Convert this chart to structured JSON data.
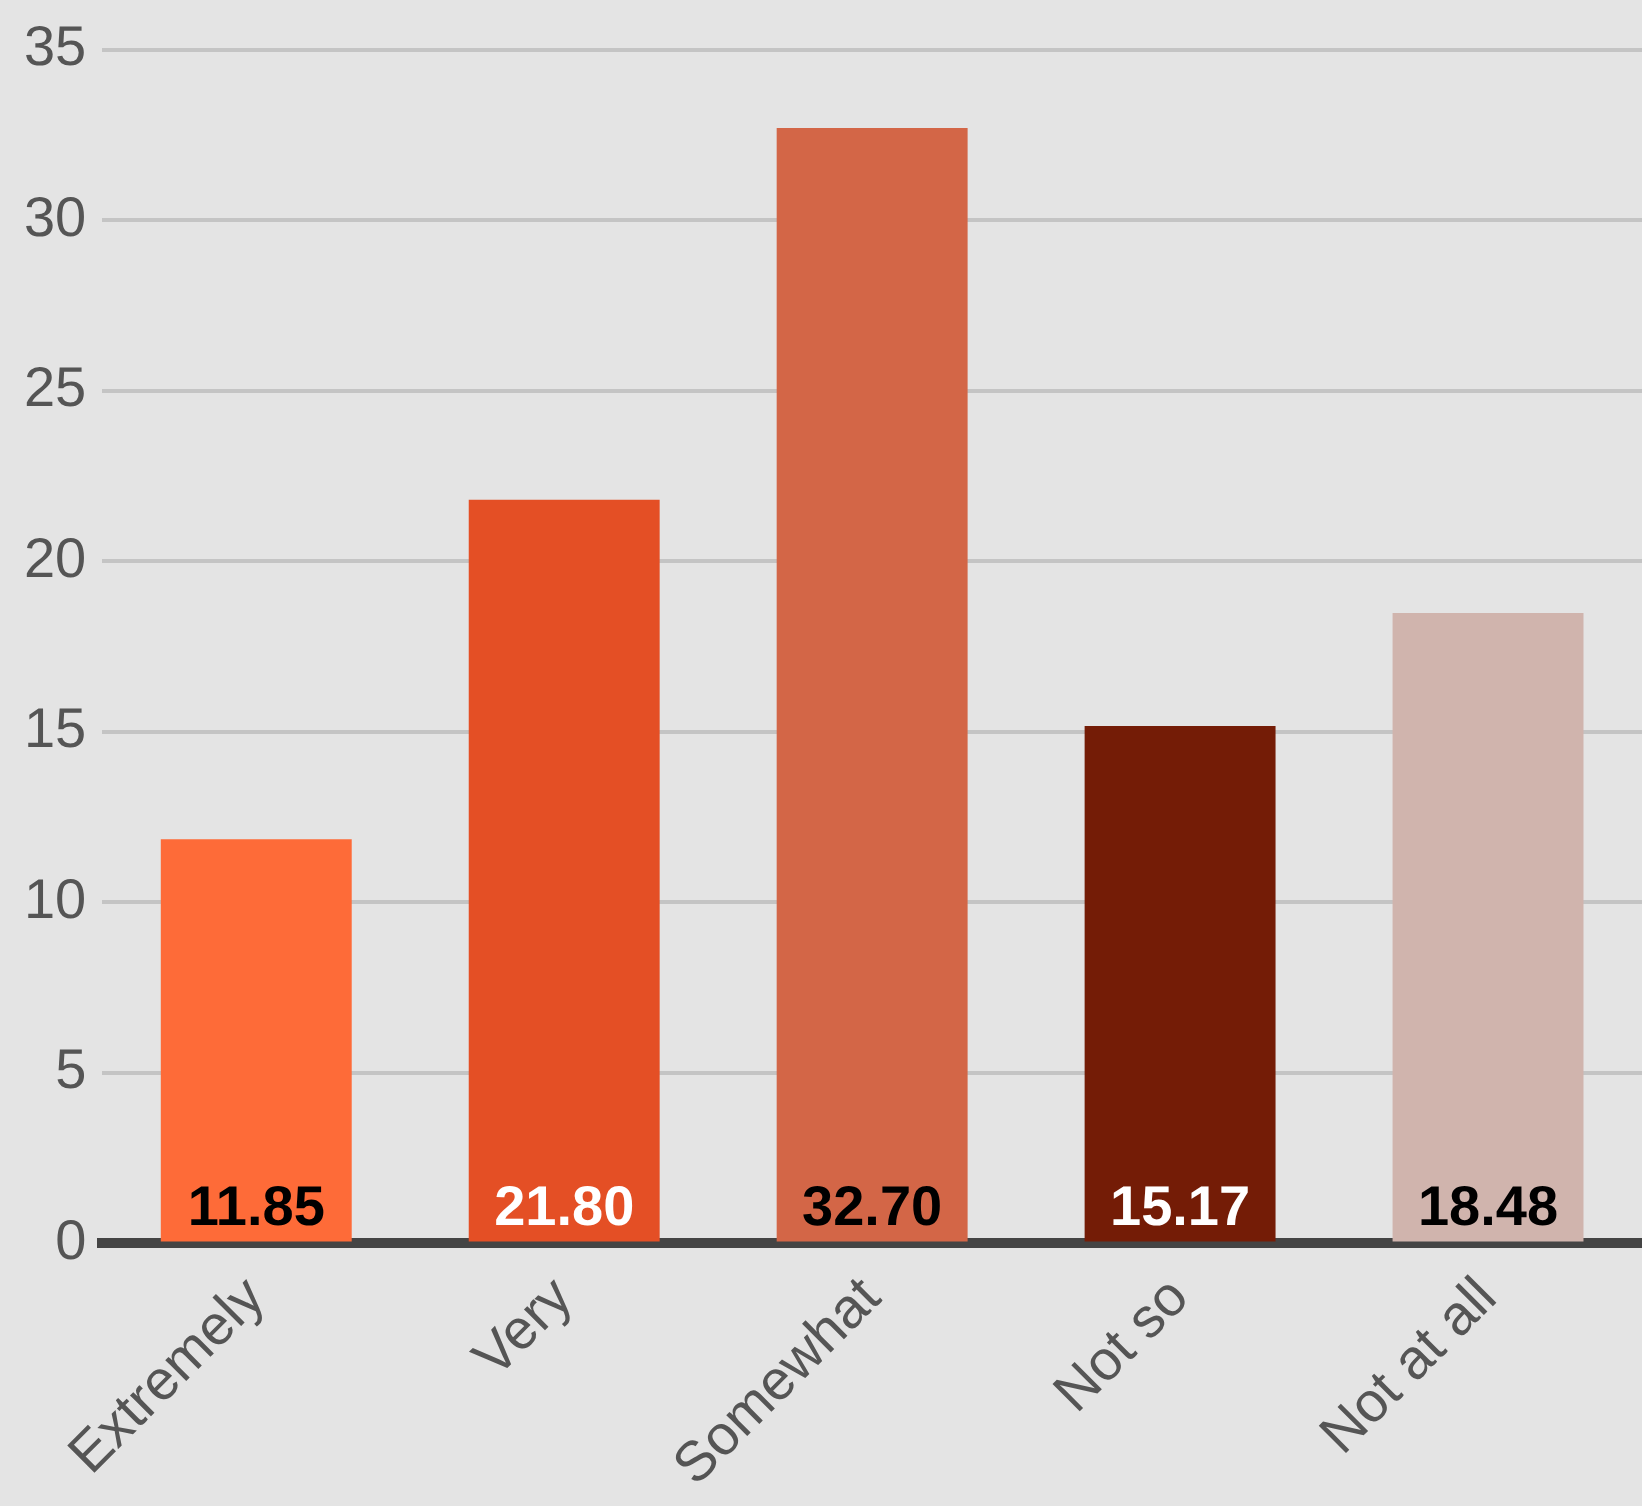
{
  "chart_data": {
    "type": "bar",
    "categories": [
      "Extremely",
      "Very",
      "Somewhat",
      "Not so",
      "Not at all"
    ],
    "values": [
      11.85,
      21.8,
      32.7,
      15.17,
      18.48
    ],
    "colors": [
      "#fe6b38",
      "#e44f25",
      "#d36647",
      "#741c06",
      "#d0b4ad"
    ],
    "value_labels": [
      "11.85",
      "21.80",
      "32.70",
      "15.17",
      "18.48"
    ],
    "ylim": [
      0,
      35
    ],
    "yticks": [
      0,
      5,
      10,
      15,
      20,
      25,
      30,
      35
    ],
    "grid": "y",
    "legend": false
  }
}
